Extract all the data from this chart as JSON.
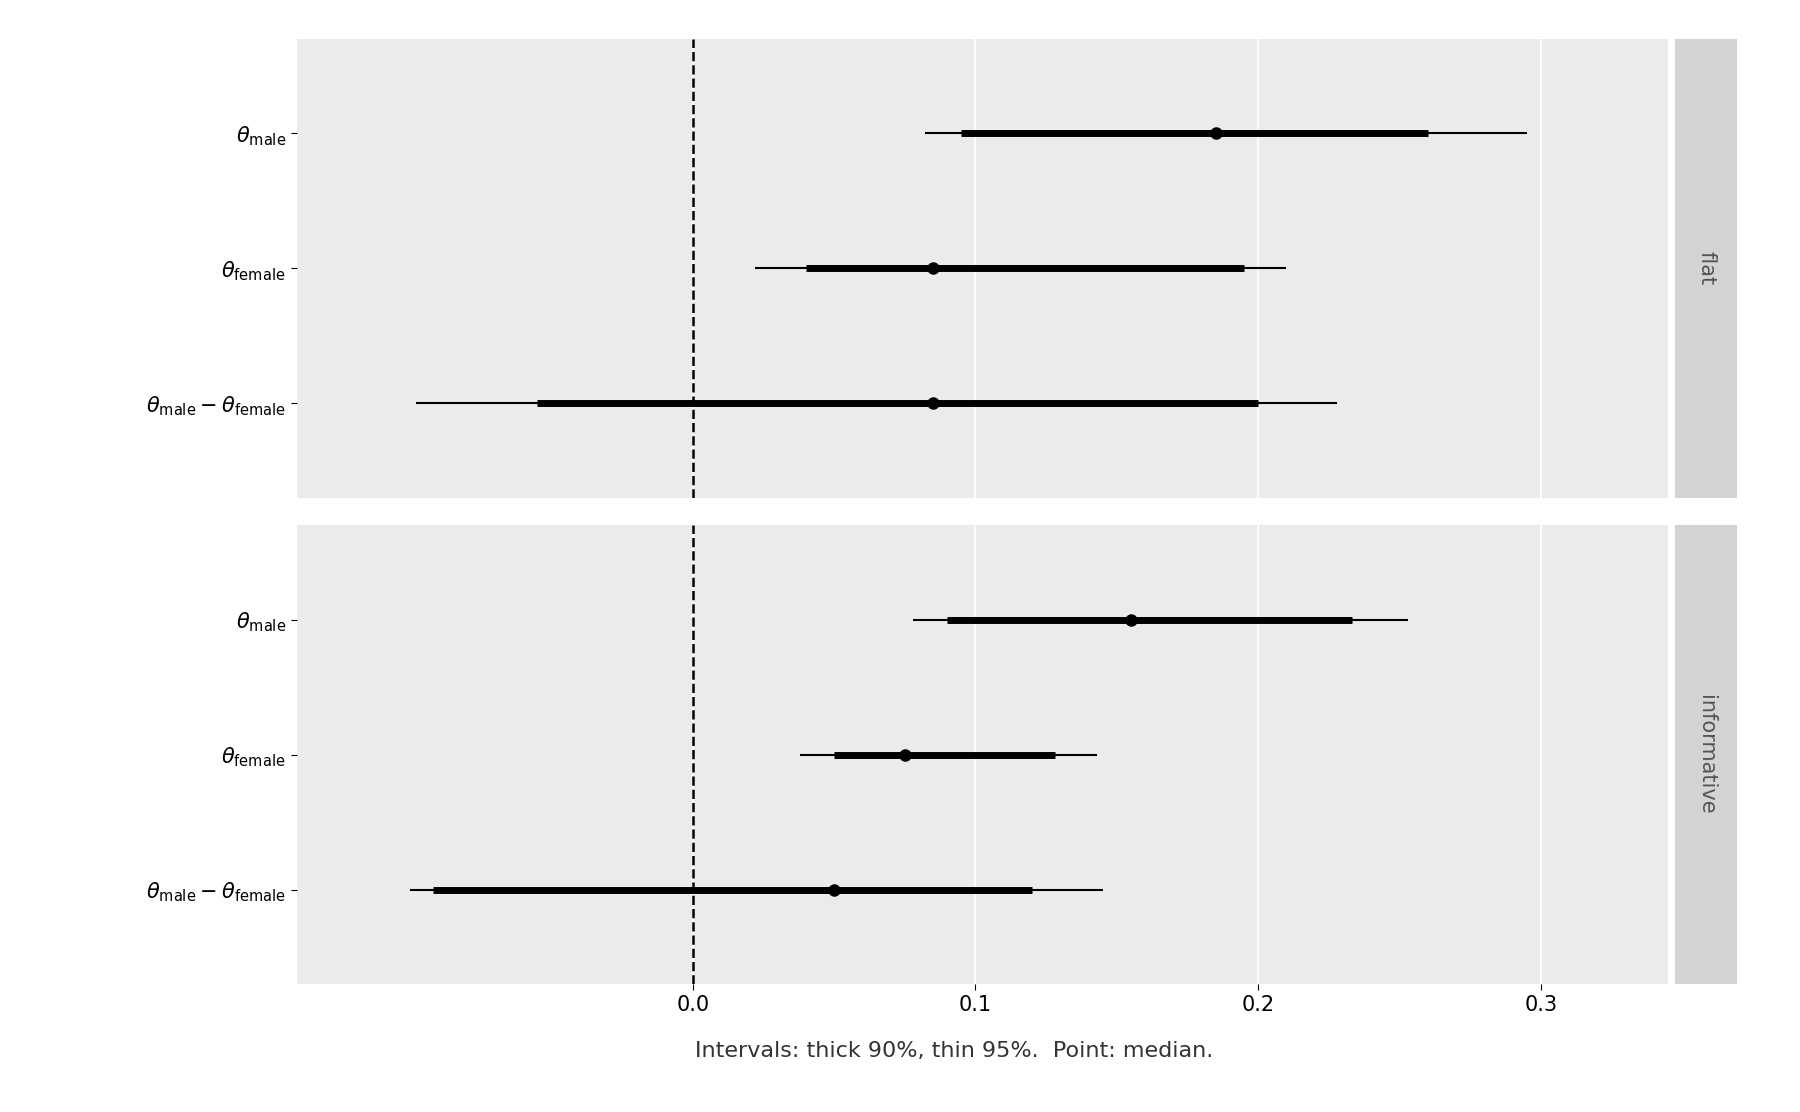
{
  "panels": [
    {
      "label": "flat",
      "params": [
        {
          "name": "theta_male",
          "median": 0.185,
          "ci90_lo": 0.095,
          "ci90_hi": 0.26,
          "ci95_lo": 0.082,
          "ci95_hi": 0.295
        },
        {
          "name": "theta_female",
          "median": 0.085,
          "ci90_lo": 0.04,
          "ci90_hi": 0.195,
          "ci95_lo": 0.022,
          "ci95_hi": 0.21
        },
        {
          "name": "theta_diff",
          "median": 0.085,
          "ci90_lo": -0.055,
          "ci90_hi": 0.2,
          "ci95_lo": -0.098,
          "ci95_hi": 0.228
        }
      ]
    },
    {
      "label": "informative",
      "params": [
        {
          "name": "theta_male",
          "median": 0.155,
          "ci90_lo": 0.09,
          "ci90_hi": 0.233,
          "ci95_lo": 0.078,
          "ci95_hi": 0.253
        },
        {
          "name": "theta_female",
          "median": 0.075,
          "ci90_lo": 0.05,
          "ci90_hi": 0.128,
          "ci95_lo": 0.038,
          "ci95_hi": 0.143
        },
        {
          "name": "theta_diff",
          "median": 0.05,
          "ci90_lo": -0.092,
          "ci90_hi": 0.12,
          "ci95_lo": -0.1,
          "ci95_hi": 0.145
        }
      ]
    }
  ],
  "xlim": [
    -0.14,
    0.345
  ],
  "xticks": [
    0.0,
    0.1,
    0.2,
    0.3
  ],
  "xticklabels": [
    "0.0",
    "0.1",
    "0.2",
    "0.3"
  ],
  "bg_color": "#ebebeb",
  "strip_bg_color": "#d3d3d3",
  "outer_bg_color": "#f2f2f2",
  "line_color": "#000000",
  "thick_lw": 5,
  "thin_lw": 1.5,
  "point_size": 9,
  "vline_x": 0.0,
  "xlabel": "Intervals: thick 90%, thin 95%.  Point: median.",
  "label_fontsize": 15,
  "tick_fontsize": 15,
  "strip_fontsize": 15
}
